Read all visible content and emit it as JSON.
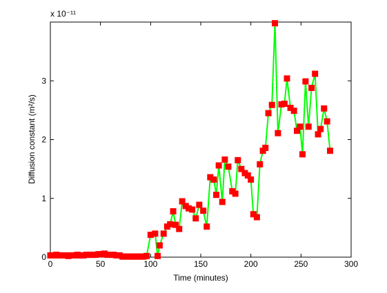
{
  "chart_data": {
    "type": "line",
    "xlabel": "Time (minutes)",
    "ylabel": "Diffusion constant (m²/s)",
    "y_multiplier": "x 10⁻¹¹",
    "x": [
      0,
      3,
      6,
      9,
      12,
      15,
      18,
      21,
      24,
      27,
      30,
      33,
      36,
      39,
      42,
      45,
      48,
      51,
      54,
      57,
      60,
      63,
      66,
      69,
      72,
      75,
      78,
      81,
      84,
      87,
      90,
      93,
      96,
      100,
      104.5,
      107,
      109,
      113,
      116.5,
      119.5,
      122.5,
      125,
      128.5,
      131.5,
      135,
      138,
      141.5,
      145,
      148.5,
      152.5,
      156,
      159.5,
      163,
      165.5,
      168,
      171.5,
      174,
      177.5,
      181.5,
      184.5,
      187,
      190.5,
      194,
      197,
      200,
      202.5,
      206,
      209,
      212,
      214.5,
      217.5,
      221,
      224,
      227,
      230.5,
      233.5,
      236,
      239.5,
      243,
      246,
      249,
      251.5,
      254.5,
      257.5,
      260.5,
      264,
      267,
      269.5,
      273,
      276,
      279
    ],
    "values": [
      0.03,
      0.03,
      0.04,
      0.03,
      0.03,
      0.03,
      0.02,
      0.03,
      0.03,
      0.04,
      0.03,
      0.03,
      0.04,
      0.04,
      0.04,
      0.04,
      0.05,
      0.05,
      0.06,
      0.04,
      0.04,
      0.04,
      0.03,
      0.03,
      0.01,
      0.01,
      0.01,
      0.01,
      0.01,
      0.01,
      0.01,
      0.01,
      0.02,
      0.38,
      0.4,
      0.02,
      0.2,
      0.4,
      0.52,
      0.56,
      0.78,
      0.55,
      0.48,
      0.95,
      0.87,
      0.83,
      0.81,
      0.66,
      0.89,
      0.79,
      0.52,
      1.36,
      1.32,
      1.06,
      1.56,
      0.94,
      1.66,
      1.54,
      1.12,
      1.08,
      1.65,
      1.5,
      1.43,
      1.39,
      1.32,
      0.73,
      0.68,
      1.58,
      1.81,
      1.86,
      2.45,
      2.59,
      3.98,
      2.11,
      2.6,
      2.61,
      3.04,
      2.54,
      2.49,
      2.15,
      2.22,
      1.75,
      2.99,
      2.22,
      2.88,
      3.12,
      2.09,
      2.18,
      2.53,
      2.31,
      1.81
    ],
    "line_color": "#00ff00",
    "marker_color": "#ff0000",
    "xlim": [
      0,
      300
    ],
    "xticks": [
      0,
      50,
      100,
      150,
      200,
      250,
      300
    ],
    "ylim": [
      0,
      4
    ],
    "yticks": [
      0,
      1,
      2,
      3
    ]
  }
}
